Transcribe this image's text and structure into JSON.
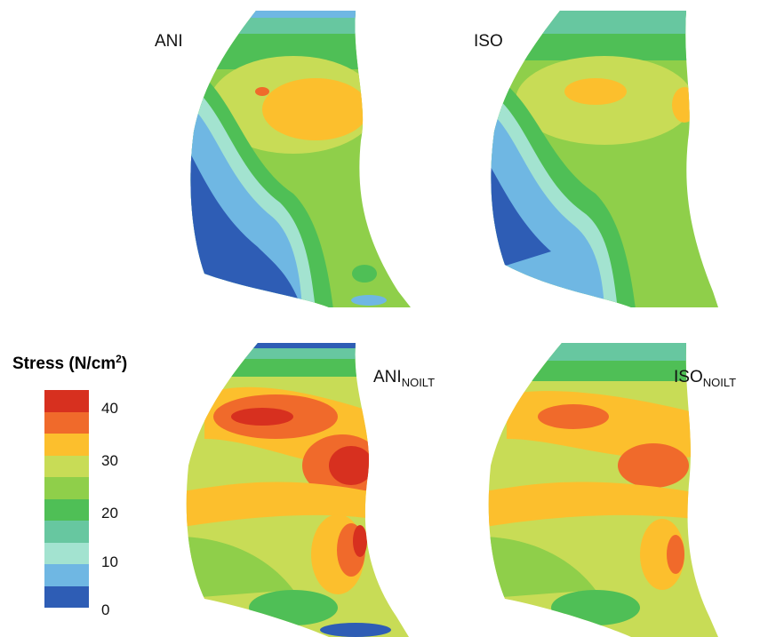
{
  "panels": [
    {
      "id": "ani",
      "label": "ANI",
      "sub": ""
    },
    {
      "id": "iso",
      "label": "ISO",
      "sub": ""
    },
    {
      "id": "ani_noilt",
      "label": "ANI",
      "sub": "NOILT"
    },
    {
      "id": "iso_noilt",
      "label": "ISO",
      "sub": "NOILT"
    }
  ],
  "legend": {
    "title": "Stress (N/cm",
    "title_sup": "2",
    "title_close": ")",
    "ticks": [
      "40",
      "30",
      "20",
      "10",
      "0"
    ],
    "colors": [
      "#d7301f",
      "#f06a2b",
      "#fcbf2d",
      "#c8dc56",
      "#8fcf4a",
      "#4fbf56",
      "#67c7a0",
      "#a3e3d0",
      "#6fb7e3",
      "#2e5db5"
    ]
  }
}
